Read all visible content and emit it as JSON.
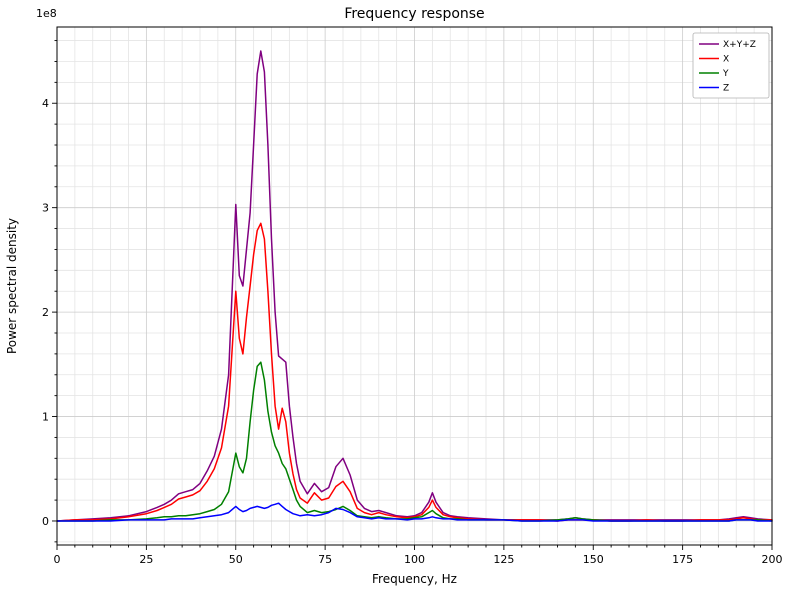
{
  "chart_data": {
    "type": "line",
    "title": "Frequency response",
    "xlabel": "Frequency, Hz",
    "ylabel": "Power spectral density",
    "y_offset_label": "1e8",
    "y_values_unit": "1e8",
    "xlim": [
      0,
      200
    ],
    "ylim": [
      -0.23,
      4.73
    ],
    "x_major_ticks": [
      0,
      25,
      50,
      75,
      100,
      125,
      150,
      175,
      200
    ],
    "y_major_ticks": [
      0,
      1,
      2,
      3,
      4
    ],
    "x_minor_step": 5,
    "y_minor_step": 0.2,
    "grid": true,
    "legend_position": "upper right",
    "x": [
      0,
      5,
      10,
      15,
      20,
      25,
      28,
      30,
      32,
      34,
      36,
      38,
      40,
      42,
      44,
      46,
      48,
      50,
      51,
      52,
      53,
      54,
      55,
      56,
      57,
      58,
      59,
      60,
      61,
      62,
      63,
      64,
      65,
      66,
      67,
      68,
      70,
      72,
      74,
      76,
      78,
      80,
      82,
      84,
      86,
      88,
      90,
      92,
      95,
      98,
      100,
      102,
      104,
      105,
      106,
      108,
      110,
      112,
      115,
      120,
      125,
      130,
      135,
      140,
      143,
      145,
      147,
      150,
      155,
      160,
      165,
      170,
      175,
      180,
      185,
      188,
      190,
      192,
      194,
      196,
      200
    ],
    "series": [
      {
        "name": "X+Y+Z",
        "color": "#800080",
        "values": [
          0,
          0.01,
          0.02,
          0.03,
          0.05,
          0.09,
          0.13,
          0.16,
          0.2,
          0.26,
          0.28,
          0.3,
          0.36,
          0.48,
          0.62,
          0.88,
          1.4,
          3.03,
          2.35,
          2.25,
          2.6,
          2.95,
          3.6,
          4.28,
          4.5,
          4.3,
          3.6,
          2.7,
          2.0,
          1.58,
          1.55,
          1.52,
          1.1,
          0.8,
          0.55,
          0.38,
          0.26,
          0.36,
          0.28,
          0.32,
          0.52,
          0.6,
          0.44,
          0.2,
          0.12,
          0.09,
          0.1,
          0.08,
          0.05,
          0.04,
          0.05,
          0.08,
          0.18,
          0.27,
          0.18,
          0.08,
          0.05,
          0.04,
          0.03,
          0.02,
          0.01,
          0.01,
          0.01,
          0.01,
          0.02,
          0.03,
          0.02,
          0.01,
          0.01,
          0.01,
          0.01,
          0.01,
          0.01,
          0.01,
          0.01,
          0.02,
          0.03,
          0.04,
          0.03,
          0.02,
          0.01
        ]
      },
      {
        "name": "X",
        "color": "#ff0000",
        "values": [
          0,
          0.01,
          0.01,
          0.02,
          0.04,
          0.07,
          0.1,
          0.13,
          0.16,
          0.21,
          0.23,
          0.25,
          0.29,
          0.38,
          0.5,
          0.7,
          1.1,
          2.2,
          1.75,
          1.6,
          1.95,
          2.25,
          2.55,
          2.78,
          2.85,
          2.7,
          2.2,
          1.6,
          1.1,
          0.88,
          1.08,
          0.95,
          0.65,
          0.45,
          0.3,
          0.22,
          0.17,
          0.27,
          0.2,
          0.22,
          0.33,
          0.38,
          0.28,
          0.12,
          0.08,
          0.06,
          0.08,
          0.06,
          0.04,
          0.03,
          0.04,
          0.06,
          0.13,
          0.2,
          0.13,
          0.06,
          0.04,
          0.03,
          0.02,
          0.01,
          0.01,
          0.01,
          0.01,
          0,
          0.01,
          0.01,
          0.01,
          0.01,
          0,
          0,
          0.01,
          0,
          0,
          0.01,
          0.01,
          0.01,
          0.02,
          0.03,
          0.02,
          0.01,
          0.01
        ]
      },
      {
        "name": "Y",
        "color": "#008000",
        "values": [
          0,
          0,
          0,
          0.01,
          0.01,
          0.02,
          0.03,
          0.04,
          0.04,
          0.05,
          0.05,
          0.06,
          0.07,
          0.09,
          0.11,
          0.16,
          0.28,
          0.65,
          0.52,
          0.46,
          0.6,
          0.95,
          1.25,
          1.48,
          1.52,
          1.35,
          1.05,
          0.85,
          0.72,
          0.65,
          0.55,
          0.5,
          0.4,
          0.3,
          0.2,
          0.14,
          0.08,
          0.1,
          0.08,
          0.09,
          0.11,
          0.14,
          0.1,
          0.05,
          0.04,
          0.03,
          0.04,
          0.03,
          0.02,
          0.02,
          0.03,
          0.04,
          0.08,
          0.1,
          0.07,
          0.03,
          0.02,
          0.02,
          0.01,
          0.01,
          0.01,
          0,
          0,
          0.01,
          0.02,
          0.03,
          0.02,
          0.01,
          0,
          0,
          0,
          0,
          0,
          0,
          0,
          0,
          0.01,
          0.01,
          0.01,
          0.01,
          0
        ]
      },
      {
        "name": "Z",
        "color": "#0000ff",
        "values": [
          0,
          0,
          0,
          0,
          0.01,
          0.01,
          0.01,
          0.01,
          0.02,
          0.02,
          0.02,
          0.02,
          0.03,
          0.04,
          0.05,
          0.06,
          0.08,
          0.14,
          0.11,
          0.09,
          0.1,
          0.12,
          0.13,
          0.14,
          0.13,
          0.12,
          0.13,
          0.15,
          0.16,
          0.17,
          0.14,
          0.11,
          0.09,
          0.07,
          0.06,
          0.05,
          0.06,
          0.05,
          0.06,
          0.08,
          0.12,
          0.11,
          0.08,
          0.04,
          0.03,
          0.02,
          0.03,
          0.02,
          0.02,
          0.01,
          0.02,
          0.02,
          0.03,
          0.04,
          0.03,
          0.02,
          0.02,
          0.01,
          0.01,
          0.01,
          0.01,
          0,
          0,
          0,
          0.01,
          0.01,
          0.01,
          0,
          0,
          0,
          0,
          0,
          0,
          0,
          0,
          0,
          0.01,
          0.01,
          0.01,
          0,
          0
        ]
      }
    ]
  }
}
